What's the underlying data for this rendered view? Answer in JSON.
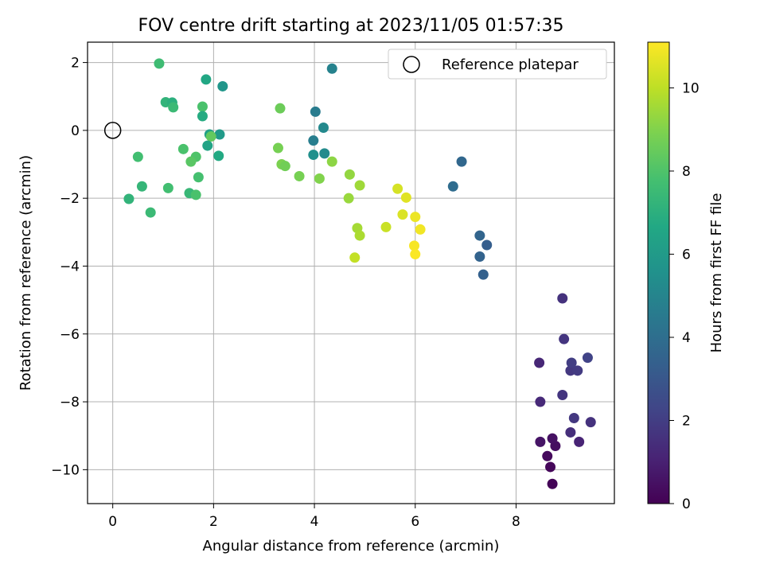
{
  "chart_data": {
    "type": "scatter",
    "title": "FOV centre drift starting at 2023/11/05 01:57:35",
    "xlabel": "Angular distance from reference (arcmin)",
    "ylabel": "Rotation from reference (arcmin)",
    "xlim": [
      -0.5,
      9.95
    ],
    "ylim": [
      -11.0,
      2.6
    ],
    "xticks": [
      0,
      2,
      4,
      6,
      8
    ],
    "yticks": [
      2,
      0,
      -2,
      -4,
      -6,
      -8,
      -10
    ],
    "xtick_labels": [
      "0",
      "2",
      "4",
      "6",
      "8"
    ],
    "ytick_labels": [
      "2",
      "0",
      "−2",
      "−4",
      "−6",
      "−8",
      "−10"
    ],
    "grid": true,
    "legend": {
      "position": "top-right",
      "entries": [
        "Reference platepar"
      ]
    },
    "reference_point": {
      "x": 0,
      "y": 0,
      "label": "Reference platepar"
    },
    "colorbar": {
      "label": "Hours from first FF file",
      "colormap": "viridis",
      "range": [
        0,
        11.1
      ],
      "ticks": [
        0,
        2,
        4,
        6,
        8,
        10
      ],
      "tick_labels": [
        "0",
        "2",
        "4",
        "6",
        "8",
        "10"
      ]
    },
    "points": [
      {
        "x": 8.72,
        "y": -10.42,
        "c": 0.1
      },
      {
        "x": 8.68,
        "y": -9.92,
        "c": 0.2
      },
      {
        "x": 8.62,
        "y": -9.6,
        "c": 0.3
      },
      {
        "x": 8.78,
        "y": -9.3,
        "c": 0.4
      },
      {
        "x": 8.72,
        "y": -9.08,
        "c": 0.5
      },
      {
        "x": 8.48,
        "y": -9.18,
        "c": 0.6
      },
      {
        "x": 9.25,
        "y": -9.18,
        "c": 1.1
      },
      {
        "x": 9.08,
        "y": -8.9,
        "c": 1.5
      },
      {
        "x": 9.48,
        "y": -8.6,
        "c": 1.6
      },
      {
        "x": 9.15,
        "y": -8.48,
        "c": 1.8
      },
      {
        "x": 8.48,
        "y": -8.0,
        "c": 1.3
      },
      {
        "x": 8.92,
        "y": -7.8,
        "c": 1.7
      },
      {
        "x": 9.08,
        "y": -7.08,
        "c": 1.8
      },
      {
        "x": 9.22,
        "y": -7.08,
        "c": 1.9
      },
      {
        "x": 9.1,
        "y": -6.85,
        "c": 2.0
      },
      {
        "x": 9.42,
        "y": -6.7,
        "c": 2.2
      },
      {
        "x": 8.46,
        "y": -6.85,
        "c": 1.2
      },
      {
        "x": 8.95,
        "y": -6.15,
        "c": 1.7
      },
      {
        "x": 8.92,
        "y": -4.95,
        "c": 1.6
      },
      {
        "x": 7.35,
        "y": -4.25,
        "c": 3.4
      },
      {
        "x": 7.28,
        "y": -3.72,
        "c": 3.5
      },
      {
        "x": 7.42,
        "y": -3.38,
        "c": 3.3
      },
      {
        "x": 7.28,
        "y": -3.1,
        "c": 3.6
      },
      {
        "x": 6.75,
        "y": -1.65,
        "c": 3.9
      },
      {
        "x": 6.92,
        "y": -0.92,
        "c": 3.7
      },
      {
        "x": 4.35,
        "y": 1.82,
        "c": 4.9
      },
      {
        "x": 4.02,
        "y": 0.55,
        "c": 4.6
      },
      {
        "x": 4.18,
        "y": 0.08,
        "c": 5.2
      },
      {
        "x": 3.98,
        "y": -0.3,
        "c": 4.7
      },
      {
        "x": 3.98,
        "y": -0.72,
        "c": 5.5
      },
      {
        "x": 4.2,
        "y": -0.68,
        "c": 5.3
      },
      {
        "x": 0.92,
        "y": 1.97,
        "c": 7.6
      },
      {
        "x": 1.85,
        "y": 1.5,
        "c": 6.6
      },
      {
        "x": 2.18,
        "y": 1.3,
        "c": 5.8
      },
      {
        "x": 1.05,
        "y": 0.83,
        "c": 7.2
      },
      {
        "x": 1.18,
        "y": 0.82,
        "c": 7.0
      },
      {
        "x": 1.2,
        "y": 0.68,
        "c": 7.5
      },
      {
        "x": 1.78,
        "y": 0.7,
        "c": 7.9
      },
      {
        "x": 1.78,
        "y": 0.42,
        "c": 6.8
      },
      {
        "x": 1.92,
        "y": -0.12,
        "c": 6.3
      },
      {
        "x": 2.12,
        "y": -0.12,
        "c": 6.0
      },
      {
        "x": 1.95,
        "y": -0.18,
        "c": 8.4
      },
      {
        "x": 1.88,
        "y": -0.45,
        "c": 6.4
      },
      {
        "x": 1.4,
        "y": -0.55,
        "c": 7.9
      },
      {
        "x": 2.1,
        "y": -0.75,
        "c": 6.7
      },
      {
        "x": 0.5,
        "y": -0.78,
        "c": 7.7
      },
      {
        "x": 1.65,
        "y": -0.78,
        "c": 8.0
      },
      {
        "x": 1.55,
        "y": -0.92,
        "c": 8.2
      },
      {
        "x": 1.7,
        "y": -1.38,
        "c": 7.8
      },
      {
        "x": 0.58,
        "y": -1.65,
        "c": 7.3
      },
      {
        "x": 1.1,
        "y": -1.7,
        "c": 7.7
      },
      {
        "x": 1.52,
        "y": -1.85,
        "c": 7.4
      },
      {
        "x": 1.65,
        "y": -1.9,
        "c": 7.9
      },
      {
        "x": 0.32,
        "y": -2.02,
        "c": 7.2
      },
      {
        "x": 0.75,
        "y": -2.42,
        "c": 7.5
      },
      {
        "x": 3.32,
        "y": 0.65,
        "c": 8.6
      },
      {
        "x": 3.28,
        "y": -0.52,
        "c": 8.8
      },
      {
        "x": 3.35,
        "y": -1.0,
        "c": 8.9
      },
      {
        "x": 3.42,
        "y": -1.05,
        "c": 8.7
      },
      {
        "x": 3.7,
        "y": -1.35,
        "c": 8.8
      },
      {
        "x": 4.1,
        "y": -1.42,
        "c": 9.0
      },
      {
        "x": 4.35,
        "y": -0.92,
        "c": 9.2
      },
      {
        "x": 4.7,
        "y": -1.3,
        "c": 9.3
      },
      {
        "x": 4.9,
        "y": -1.62,
        "c": 9.5
      },
      {
        "x": 4.68,
        "y": -2.0,
        "c": 9.4
      },
      {
        "x": 4.85,
        "y": -2.88,
        "c": 9.6
      },
      {
        "x": 4.9,
        "y": -3.1,
        "c": 9.7
      },
      {
        "x": 4.8,
        "y": -3.75,
        "c": 10.1
      },
      {
        "x": 5.42,
        "y": -2.85,
        "c": 10.2
      },
      {
        "x": 5.65,
        "y": -1.72,
        "c": 10.4
      },
      {
        "x": 5.82,
        "y": -1.98,
        "c": 10.6
      },
      {
        "x": 5.75,
        "y": -2.48,
        "c": 10.5
      },
      {
        "x": 6.0,
        "y": -2.55,
        "c": 10.8
      },
      {
        "x": 6.1,
        "y": -2.92,
        "c": 10.9
      },
      {
        "x": 5.98,
        "y": -3.4,
        "c": 11.0
      },
      {
        "x": 6.0,
        "y": -3.65,
        "c": 11.05
      }
    ]
  }
}
